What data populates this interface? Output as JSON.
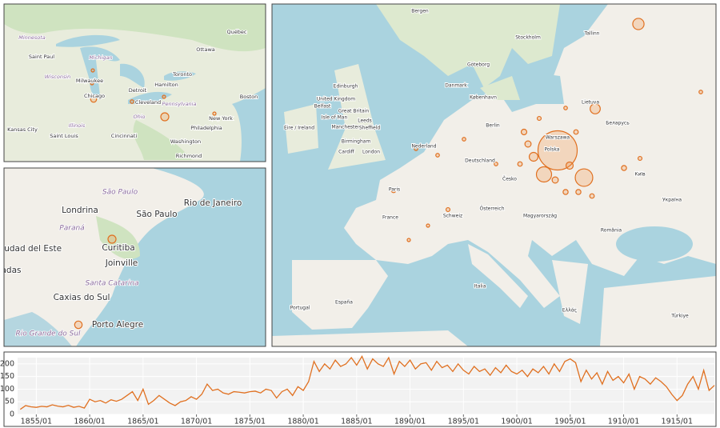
{
  "maps": [
    {
      "places": [
        "Québec",
        "Ottawa",
        "Toronto",
        "Hamilton",
        "Detroit",
        "Saint Paul",
        "Milwaukee",
        "Chicago",
        "Cleveland",
        "Boston",
        "New York",
        "Philadelphia",
        "Washington",
        "Richmond",
        "Kansas City",
        "Saint Louis",
        "Cincinnati"
      ],
      "regions": [
        "Minnesota",
        "Michigan",
        "Wisconsin",
        "Illinois",
        "Ohio",
        "Pennsylvania"
      ],
      "markers": [
        4,
        4,
        14,
        5,
        25,
        4,
        4
      ]
    },
    {
      "places": [
        "Rio de Janeiro",
        "Londrina",
        "São Paulo",
        "Curitiba",
        "Ciudad del Este",
        "Joinville",
        "Caxias do Sul",
        "Porto Alegre",
        "adas"
      ],
      "regions": [
        "São Paulo",
        "Paraná",
        "Santa Catarina",
        "Rio Grande do Sul"
      ],
      "markers": [
        25,
        22
      ]
    },
    {
      "places": [
        "Bergen",
        "Stockholm",
        "Tallinn",
        "Göteborg",
        "Danmark",
        "København",
        "Edinburgh",
        "United Kingdom",
        "Great Britain",
        "Belfast",
        "Isle of Man",
        "Éire / Ireland",
        "Leeds",
        "Manchester",
        "Sheffield",
        "Birmingham",
        "Cardiff",
        "London",
        "Nederland",
        "Berlin",
        "Deutschland",
        "Warszawa",
        "Polska",
        "Lietuva",
        "Беларусь",
        "Київ",
        "Україна",
        "Paris",
        "France",
        "Česko",
        "Österreich",
        "Magyarország",
        "România",
        "Schweiz",
        "Italia",
        "España",
        "Portugal",
        "Ελλάς",
        "Türkiye"
      ],
      "regions": [],
      "markers": [
        600,
        120,
        90,
        40,
        50,
        30,
        20,
        15,
        15,
        10,
        10,
        12,
        8,
        8,
        8,
        5,
        5,
        5,
        8,
        6,
        10,
        6,
        5,
        6,
        5,
        5,
        4,
        4
      ]
    }
  ],
  "chart_data": {
    "type": "line",
    "x": [
      "1853/07",
      "1854/01",
      "1854/07",
      "1855/01",
      "1855/07",
      "1856/01",
      "1856/07",
      "1857/01",
      "1857/07",
      "1858/01",
      "1858/07",
      "1859/01",
      "1859/07",
      "1860/01",
      "1860/07",
      "1861/01",
      "1861/07",
      "1862/01",
      "1862/07",
      "1863/01",
      "1863/07",
      "1864/01",
      "1864/07",
      "1865/01",
      "1865/07",
      "1866/01",
      "1866/07",
      "1867/01",
      "1867/07",
      "1868/01",
      "1868/07",
      "1869/01",
      "1869/07",
      "1870/01",
      "1870/07",
      "1871/01",
      "1871/07",
      "1872/01",
      "1872/07",
      "1873/01",
      "1873/07",
      "1874/01",
      "1874/07",
      "1875/01",
      "1875/07",
      "1876/01",
      "1876/07",
      "1877/01",
      "1877/07",
      "1878/01",
      "1878/07",
      "1879/01",
      "1879/07",
      "1880/01",
      "1880/07",
      "1881/01",
      "1881/07",
      "1882/01",
      "1882/07",
      "1883/01",
      "1883/07",
      "1884/01",
      "1884/07",
      "1885/01",
      "1885/07",
      "1886/01",
      "1886/07",
      "1887/01",
      "1887/07",
      "1888/01",
      "1888/07",
      "1889/01",
      "1889/07",
      "1890/01",
      "1890/07",
      "1891/01",
      "1891/07",
      "1892/01",
      "1892/07",
      "1893/01",
      "1893/07",
      "1894/01",
      "1894/07",
      "1895/01",
      "1895/07",
      "1896/01",
      "1896/07",
      "1897/01",
      "1897/07",
      "1898/01",
      "1898/07",
      "1899/01",
      "1899/07",
      "1900/01",
      "1900/07",
      "1901/01",
      "1901/07",
      "1902/01",
      "1902/07",
      "1903/01",
      "1903/07",
      "1904/01",
      "1904/07",
      "1905/01",
      "1905/07",
      "1906/01",
      "1906/07",
      "1907/01",
      "1907/07",
      "1908/01",
      "1908/07",
      "1909/01",
      "1909/07",
      "1910/01",
      "1910/07",
      "1911/01",
      "1911/07",
      "1912/01",
      "1912/07",
      "1913/01",
      "1913/07",
      "1914/01",
      "1914/07",
      "1915/01",
      "1915/07",
      "1916/01",
      "1916/07",
      "1917/01",
      "1917/07",
      "1918/01",
      "1918/07"
    ],
    "values": [
      20,
      35,
      30,
      28,
      32,
      30,
      38,
      33,
      30,
      36,
      28,
      32,
      25,
      60,
      50,
      55,
      45,
      58,
      52,
      60,
      75,
      90,
      55,
      100,
      40,
      55,
      75,
      60,
      45,
      35,
      50,
      55,
      70,
      60,
      80,
      120,
      95,
      100,
      85,
      80,
      90,
      88,
      85,
      90,
      92,
      85,
      100,
      95,
      65,
      90,
      100,
      75,
      110,
      95,
      130,
      210,
      170,
      200,
      180,
      215,
      190,
      200,
      225,
      195,
      230,
      180,
      220,
      200,
      190,
      225,
      160,
      210,
      190,
      215,
      180,
      200,
      205,
      175,
      210,
      185,
      195,
      170,
      200,
      175,
      160,
      190,
      170,
      180,
      155,
      185,
      165,
      195,
      170,
      160,
      175,
      150,
      180,
      165,
      190,
      160,
      200,
      170,
      210,
      220,
      205,
      130,
      175,
      140,
      165,
      120,
      170,
      135,
      150,
      125,
      160,
      100,
      150,
      140,
      120,
      145,
      130,
      110,
      80,
      55,
      75,
      120,
      150,
      100,
      175,
      95,
      115
    ],
    "color": "#e07020",
    "xlim": [
      "1853/04",
      "1918/07"
    ],
    "xticks": [
      "1855/01",
      "1860/01",
      "1865/01",
      "1870/01",
      "1875/01",
      "1880/01",
      "1885/01",
      "1890/01",
      "1895/01",
      "1900/01",
      "1905/01",
      "1910/01",
      "1915/01"
    ],
    "ylim": [
      0,
      225
    ],
    "yticks": [
      0,
      50,
      100,
      150,
      200
    ],
    "grid": true
  }
}
